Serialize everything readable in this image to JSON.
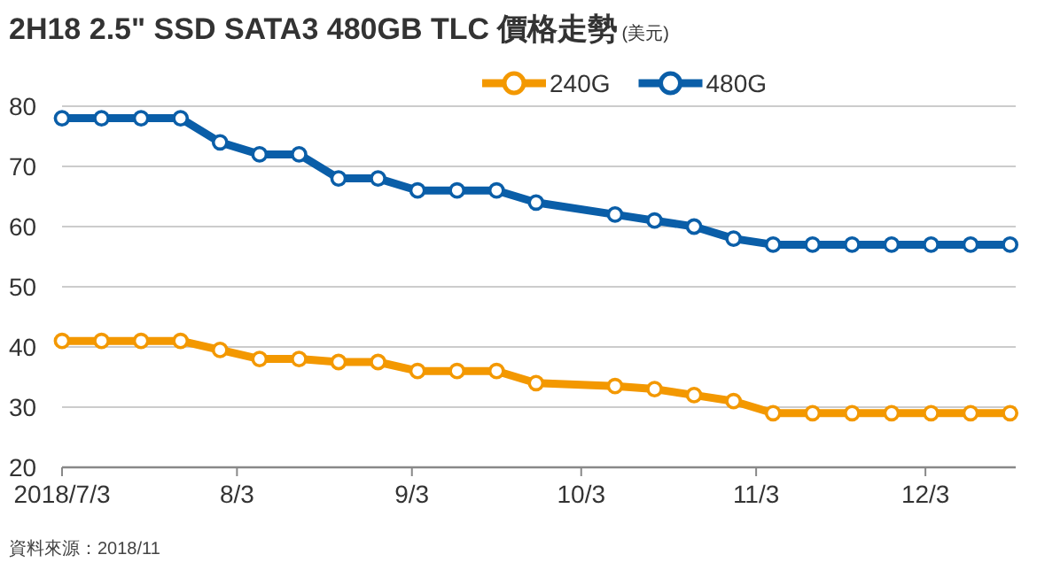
{
  "chart_data": {
    "type": "line",
    "title": "2H18 2.5\" SSD SATA3 480GB TLC 價格走勢",
    "subtitle": "(美元)",
    "x": [
      "2018-07-03",
      "2018-07-10",
      "2018-07-17",
      "2018-07-24",
      "2018-07-31",
      "2018-08-07",
      "2018-08-14",
      "2018-08-21",
      "2018-08-28",
      "2018-09-04",
      "2018-09-11",
      "2018-09-18",
      "2018-09-25",
      "2018-10-09",
      "2018-10-16",
      "2018-10-23",
      "2018-10-30",
      "2018-11-06",
      "2018-11-13",
      "2018-11-20",
      "2018-11-27",
      "2018-12-04",
      "2018-12-11",
      "2018-12-18"
    ],
    "series": [
      {
        "name": "240G",
        "color": "#f39800",
        "values": [
          41,
          41,
          41,
          41,
          39.5,
          38,
          38,
          37.5,
          37.5,
          36,
          36,
          36,
          34,
          33.5,
          33,
          32,
          31,
          29,
          29,
          29,
          29,
          29,
          29,
          29
        ]
      },
      {
        "name": "480G",
        "color": "#0a5ea8",
        "values": [
          78,
          78,
          78,
          78,
          74,
          72,
          72,
          68,
          68,
          66,
          66,
          66,
          64,
          62,
          61,
          60,
          58,
          57,
          57,
          57,
          57,
          57,
          57,
          57
        ]
      }
    ],
    "xlim": [
      "2018-07-03",
      "2018-12-19"
    ],
    "xticks": [
      {
        "value": "2018-07-03",
        "label": "2018/7/3"
      },
      {
        "value": "2018-08-03",
        "label": "8/3"
      },
      {
        "value": "2018-09-03",
        "label": "9/3"
      },
      {
        "value": "2018-10-03",
        "label": "10/3"
      },
      {
        "value": "2018-11-03",
        "label": "11/3"
      },
      {
        "value": "2018-12-03",
        "label": "12/3"
      }
    ],
    "ylim": [
      20,
      80
    ],
    "yticks": [
      20,
      30,
      40,
      50,
      60,
      70,
      80
    ],
    "grid": "y",
    "legend": "top right",
    "marker": "circle",
    "line_style": "solid",
    "annotations": [
      "資料來源：2018/11"
    ]
  }
}
